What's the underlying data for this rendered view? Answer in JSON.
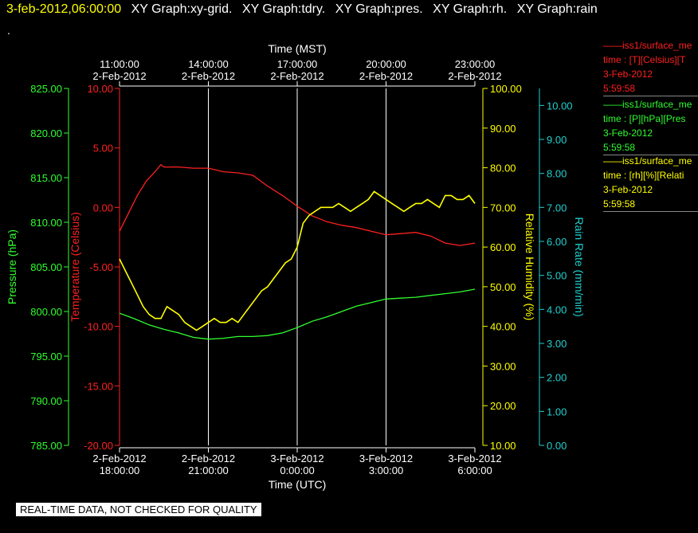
{
  "header": {
    "time": "3-feb-2012,06:00:00",
    "items": [
      "XY Graph:xy-grid.",
      "XY Graph:tdry.",
      "XY Graph:pres.",
      "XY Graph:rh.",
      "XY Graph:rain"
    ],
    "dot": "."
  },
  "footer": {
    "note": "REAL-TIME DATA, NOT CHECKED FOR QUALITY"
  },
  "legend": [
    {
      "lines": [
        "——iss1/surface_me",
        "time : [T][Celsius][T",
        "3-Feb-2012",
        "5:59:58"
      ],
      "color": "#ff2020"
    },
    {
      "lines": [
        "——iss1/surface_me",
        "time : [P][hPa][Pres",
        "3-Feb-2012",
        "5:59:58"
      ],
      "color": "#30ff30"
    },
    {
      "lines": [
        "——iss1/surface_me",
        "time : [rh][%][Relati",
        "3-Feb-2012",
        "5:59:58"
      ],
      "color": "#ffff00"
    }
  ],
  "chart_data": {
    "type": "line",
    "x_axis_bottom": {
      "label": "Time (UTC)",
      "range_hours": [
        0,
        12
      ],
      "ticks": [
        {
          "h": 0,
          "line1": "2-Feb-2012",
          "line2": "18:00:00"
        },
        {
          "h": 3,
          "line1": "2-Feb-2012",
          "line2": "21:00:00"
        },
        {
          "h": 6,
          "line1": "3-Feb-2012",
          "line2": "0:00:00"
        },
        {
          "h": 9,
          "line1": "3-Feb-2012",
          "line2": "3:00:00"
        },
        {
          "h": 12,
          "line1": "3-Feb-2012",
          "line2": "6:00:00"
        }
      ]
    },
    "x_axis_top": {
      "label": "Time (MST)",
      "ticks": [
        {
          "h": 0,
          "line1": "11:00:00",
          "line2": "2-Feb-2012"
        },
        {
          "h": 3,
          "line1": "14:00:00",
          "line2": "2-Feb-2012"
        },
        {
          "h": 6,
          "line1": "17:00:00",
          "line2": "2-Feb-2012"
        },
        {
          "h": 9,
          "line1": "20:00:00",
          "line2": "2-Feb-2012"
        },
        {
          "h": 12,
          "line1": "23:00:00",
          "line2": "2-Feb-2012"
        }
      ]
    },
    "axes": {
      "pressure": {
        "label": "Pressure (hPa)",
        "range": [
          785,
          825
        ],
        "ticks": [
          "785.00",
          "790.00",
          "795.00",
          "800.00",
          "805.00",
          "810.00",
          "815.00",
          "820.00",
          "825.00"
        ],
        "color": "#30ff30"
      },
      "temperature": {
        "label": "Temperature (Celsius)",
        "range": [
          -20,
          10
        ],
        "ticks": [
          "-20.00",
          "-15.00",
          "-10.00",
          "-5.00",
          "0.00",
          "5.00",
          "10.00"
        ],
        "color": "#ff2020"
      },
      "rh": {
        "label": "Relative Humidity (%)",
        "range": [
          10,
          100
        ],
        "ticks": [
          "10.00",
          "20.00",
          "30.00",
          "40.00",
          "50.00",
          "60.00",
          "70.00",
          "80.00",
          "90.00",
          "100.00"
        ],
        "color": "#ffff00"
      },
      "rain": {
        "label": "Rain Rate (mm/min)",
        "range": [
          0,
          10.5
        ],
        "ticks": [
          "0.00",
          "1.00",
          "2.00",
          "3.00",
          "4.00",
          "5.00",
          "6.00",
          "7.00",
          "8.00",
          "9.00",
          "10.00"
        ],
        "color": "#20d0d0"
      }
    },
    "grid": "vertical",
    "series": [
      {
        "axis": "temperature",
        "color": "#ff2020",
        "x": [
          0,
          0.3,
          0.6,
          0.9,
          1.2,
          1.4,
          1.5,
          2.0,
          2.5,
          3.0,
          3.5,
          4.0,
          4.5,
          5.0,
          5.5,
          6.0,
          6.5,
          7.0,
          7.5,
          8.0,
          8.5,
          9.0,
          9.5,
          10.0,
          10.5,
          11.0,
          11.5,
          12.0
        ],
        "y": [
          -2.0,
          -0.5,
          1.0,
          2.2,
          3.0,
          3.6,
          3.4,
          3.4,
          3.3,
          3.3,
          3.0,
          2.9,
          2.7,
          1.8,
          1.0,
          0.1,
          -0.7,
          -1.2,
          -1.5,
          -1.7,
          -2.0,
          -2.3,
          -2.2,
          -2.1,
          -2.4,
          -3.0,
          -3.2,
          -3.0
        ]
      },
      {
        "axis": "pressure",
        "color": "#30ff30",
        "x": [
          0,
          0.5,
          1.0,
          1.5,
          2.0,
          2.5,
          3.0,
          3.5,
          4.0,
          4.5,
          5.0,
          5.5,
          6.0,
          6.5,
          7.0,
          7.5,
          8.0,
          8.5,
          9.0,
          9.5,
          10.0,
          10.5,
          11.0,
          11.5,
          12.0
        ],
        "y": [
          799.8,
          799.2,
          798.5,
          798.0,
          797.6,
          797.1,
          796.9,
          797.0,
          797.2,
          797.2,
          797.3,
          797.6,
          798.2,
          798.9,
          799.4,
          800.0,
          800.6,
          801.0,
          801.4,
          801.5,
          801.6,
          801.8,
          802.0,
          802.2,
          802.5
        ]
      },
      {
        "axis": "rh",
        "color": "#ffff00",
        "x": [
          0,
          0.2,
          0.4,
          0.6,
          0.8,
          1.0,
          1.2,
          1.4,
          1.6,
          1.8,
          2.0,
          2.2,
          2.4,
          2.6,
          2.8,
          3.0,
          3.2,
          3.4,
          3.6,
          3.8,
          4.0,
          4.2,
          4.4,
          4.6,
          4.8,
          5.0,
          5.2,
          5.4,
          5.6,
          5.8,
          6.0,
          6.2,
          6.4,
          6.6,
          6.8,
          7.0,
          7.2,
          7.4,
          7.6,
          7.8,
          8.0,
          8.2,
          8.4,
          8.6,
          8.8,
          9.0,
          9.2,
          9.4,
          9.6,
          9.8,
          10.0,
          10.2,
          10.4,
          10.6,
          10.8,
          11.0,
          11.2,
          11.4,
          11.6,
          11.8,
          12.0
        ],
        "y": [
          57,
          54,
          51,
          48,
          45,
          43,
          42,
          42,
          45,
          44,
          43,
          41,
          40,
          39,
          40,
          41,
          42,
          41,
          41,
          42,
          41,
          43,
          45,
          47,
          49,
          50,
          52,
          54,
          56,
          57,
          60,
          66,
          68,
          69,
          70,
          70,
          70,
          71,
          70,
          69,
          70,
          71,
          72,
          74,
          73,
          72,
          71,
          70,
          69,
          70,
          71,
          71,
          72,
          71,
          70,
          73,
          73,
          72,
          72,
          73,
          71
        ]
      }
    ]
  }
}
